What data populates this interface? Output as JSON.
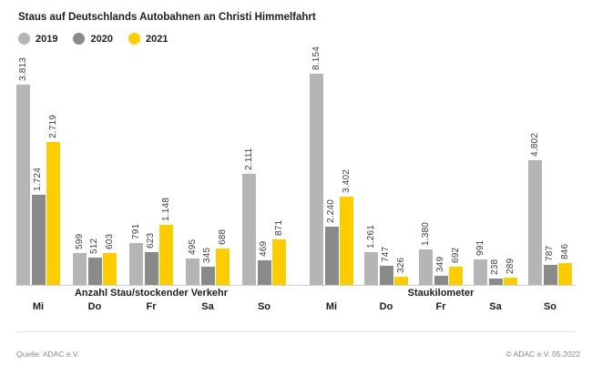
{
  "title": "Staus auf Deutschlands Autobahnen an Christi Himmelfahrt",
  "legend": [
    {
      "label": "2019",
      "color": "#b5b5b5"
    },
    {
      "label": "2020",
      "color": "#8a8a8a"
    },
    {
      "label": "2021",
      "color": "#ffcc00"
    }
  ],
  "footer": {
    "source": "Quelle: ADAC e.V.",
    "copyright": "© ADAC e.V. 05.2022"
  },
  "chart_data": [
    {
      "type": "bar",
      "title": "Anzahl Stau/stockender Verkehr",
      "categories": [
        "Mi",
        "Do",
        "Fr",
        "Sa",
        "So"
      ],
      "series": [
        {
          "name": "2019",
          "values": [
            3813,
            599,
            791,
            495,
            2111
          ],
          "display": [
            "3.813",
            "599",
            "791",
            "495",
            "2.111"
          ]
        },
        {
          "name": "2020",
          "values": [
            1724,
            512,
            623,
            345,
            469
          ],
          "display": [
            "1.724",
            "512",
            "623",
            "345",
            "469"
          ]
        },
        {
          "name": "2021",
          "values": [
            2719,
            603,
            1148,
            688,
            871
          ],
          "display": [
            "2.719",
            "603",
            "1.148",
            "688",
            "871"
          ]
        }
      ],
      "value_labels": "rotated-90",
      "axis_visible": false,
      "grid": false,
      "ylim": [
        0,
        3813
      ]
    },
    {
      "type": "bar",
      "title": "Staukilometer",
      "categories": [
        "Mi",
        "Do",
        "Fr",
        "Sa",
        "So"
      ],
      "series": [
        {
          "name": "2019",
          "values": [
            8154,
            1261,
            1380,
            991,
            4802
          ],
          "display": [
            "8.154",
            "1.261",
            "1.380",
            "991",
            "4.802"
          ]
        },
        {
          "name": "2020",
          "values": [
            2240,
            747,
            349,
            238,
            787
          ],
          "display": [
            "2.240",
            "747",
            "349",
            "238",
            "787"
          ]
        },
        {
          "name": "2021",
          "values": [
            3402,
            326,
            692,
            289,
            846
          ],
          "display": [
            "3.402",
            "326",
            "692",
            "289",
            "846"
          ]
        }
      ],
      "value_labels": "rotated-90",
      "axis_visible": false,
      "grid": false,
      "ylim": [
        0,
        8154
      ]
    }
  ]
}
